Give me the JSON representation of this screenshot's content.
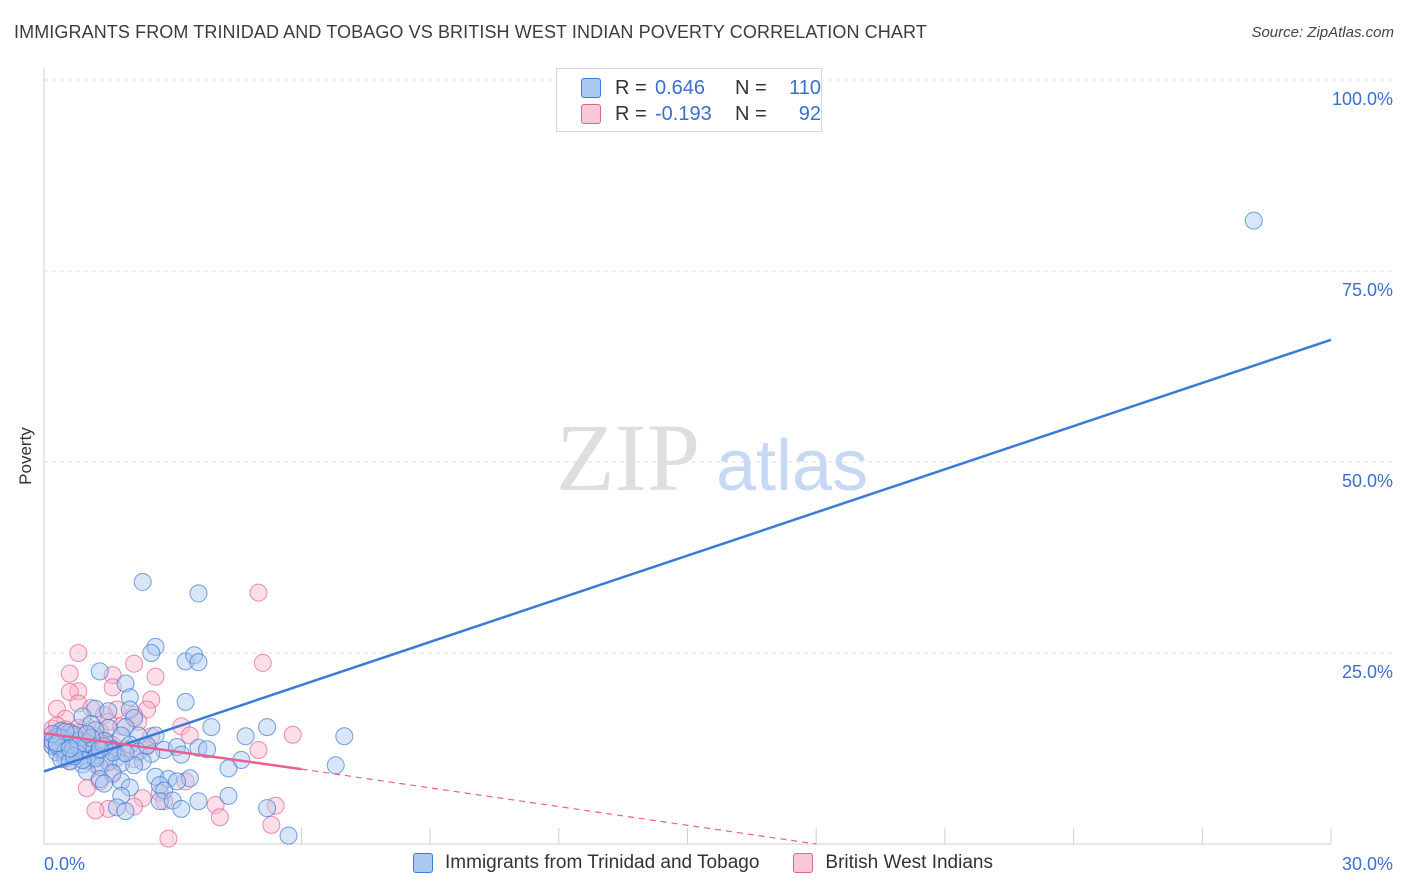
{
  "title": "IMMIGRANTS FROM TRINIDAD AND TOBAGO VS BRITISH WEST INDIAN POVERTY CORRELATION CHART",
  "source": "Source: ZipAtlas.com",
  "watermark": {
    "zip": "ZIP",
    "atlas": "atlas"
  },
  "stats": {
    "row1": {
      "r_label": "R =",
      "r_value": "0.646",
      "n_label": "N =",
      "n_value": "110"
    },
    "row2": {
      "r_label": "R =",
      "r_value": "-0.193",
      "n_label": "N =",
      "n_value": "92"
    }
  },
  "colors": {
    "blue": "#3a7bd5",
    "blue_fill": "#aac8f0",
    "pink": "#e8608f",
    "pink_fill": "#f7b6cb",
    "grid": "#dcdcdc",
    "tick_text": "#3a6fd0"
  },
  "chart_data": {
    "type": "scatter",
    "title": "IMMIGRANTS FROM TRINIDAD AND TOBAGO VS BRITISH WEST INDIAN POVERTY CORRELATION CHART",
    "xlabel": "",
    "ylabel": "Poverty",
    "xlim": [
      0,
      30
    ],
    "ylim": [
      0,
      100
    ],
    "x_tick_labels": [
      "0.0%",
      "30.0%"
    ],
    "y_ticks": [
      25,
      50,
      75,
      100
    ],
    "y_tick_labels": [
      "25.0%",
      "50.0%",
      "75.0%",
      "100.0%"
    ],
    "legend_position": "bottom-center",
    "series": [
      {
        "name": "Immigrants from Trinidad and Tobago",
        "color": "#3a7bd5",
        "trend": {
          "x": [
            0,
            30
          ],
          "y": [
            9.5,
            66.0
          ],
          "style": "solid"
        },
        "points": [
          [
            28.2,
            81.6
          ],
          [
            2.3,
            34.3
          ],
          [
            3.6,
            32.8
          ],
          [
            2.6,
            25.8
          ],
          [
            2.5,
            25.0
          ],
          [
            3.3,
            23.9
          ],
          [
            3.5,
            24.7
          ],
          [
            3.6,
            23.8
          ],
          [
            1.3,
            22.6
          ],
          [
            1.9,
            21.0
          ],
          [
            2.0,
            19.2
          ],
          [
            3.3,
            18.6
          ],
          [
            1.2,
            17.7
          ],
          [
            1.5,
            17.4
          ],
          [
            2.0,
            17.6
          ],
          [
            0.9,
            16.7
          ],
          [
            2.1,
            16.5
          ],
          [
            1.5,
            15.2
          ],
          [
            1.9,
            15.3
          ],
          [
            1.1,
            15.7
          ],
          [
            3.9,
            15.3
          ],
          [
            5.2,
            15.3
          ],
          [
            0.4,
            14.8
          ],
          [
            0.6,
            14.6
          ],
          [
            1.2,
            14.9
          ],
          [
            1.8,
            14.2
          ],
          [
            2.2,
            14.2
          ],
          [
            2.6,
            14.2
          ],
          [
            4.7,
            14.1
          ],
          [
            7.0,
            14.1
          ],
          [
            0.3,
            14.0
          ],
          [
            0.5,
            13.7
          ],
          [
            0.8,
            13.5
          ],
          [
            1.0,
            13.2
          ],
          [
            1.4,
            13.5
          ],
          [
            2.0,
            13.0
          ],
          [
            0.2,
            12.8
          ],
          [
            0.4,
            12.6
          ],
          [
            0.7,
            12.4
          ],
          [
            0.9,
            12.7
          ],
          [
            1.1,
            12.2
          ],
          [
            1.6,
            12.4
          ],
          [
            2.2,
            12.1
          ],
          [
            2.8,
            12.3
          ],
          [
            3.1,
            12.7
          ],
          [
            3.6,
            12.6
          ],
          [
            3.8,
            12.4
          ],
          [
            0.3,
            12.0
          ],
          [
            0.6,
            11.7
          ],
          [
            0.8,
            11.8
          ],
          [
            1.2,
            11.5
          ],
          [
            1.7,
            11.3
          ],
          [
            2.5,
            11.8
          ],
          [
            3.2,
            11.7
          ],
          [
            0.5,
            11.2
          ],
          [
            1.0,
            10.9
          ],
          [
            1.5,
            10.7
          ],
          [
            2.3,
            10.8
          ],
          [
            4.6,
            11.0
          ],
          [
            0.9,
            10.4
          ],
          [
            1.3,
            10.1
          ],
          [
            1.8,
            10.6
          ],
          [
            4.3,
            9.9
          ],
          [
            6.8,
            10.3
          ],
          [
            1.0,
            9.5
          ],
          [
            1.6,
            9.3
          ],
          [
            2.6,
            8.8
          ],
          [
            2.9,
            8.5
          ],
          [
            3.4,
            8.6
          ],
          [
            1.3,
            8.5
          ],
          [
            1.8,
            8.2
          ],
          [
            2.7,
            7.7
          ],
          [
            3.1,
            8.2
          ],
          [
            1.4,
            7.9
          ],
          [
            2.0,
            7.4
          ],
          [
            2.8,
            7.0
          ],
          [
            1.8,
            6.3
          ],
          [
            2.7,
            5.6
          ],
          [
            3.0,
            5.7
          ],
          [
            3.6,
            5.6
          ],
          [
            4.3,
            6.3
          ],
          [
            1.7,
            4.8
          ],
          [
            1.9,
            4.3
          ],
          [
            3.2,
            4.6
          ],
          [
            5.2,
            4.7
          ],
          [
            5.7,
            1.1
          ],
          [
            0.2,
            13.4
          ],
          [
            0.4,
            13.9
          ],
          [
            0.6,
            13.1
          ],
          [
            0.3,
            12.9
          ],
          [
            0.7,
            14.3
          ],
          [
            1.1,
            13.9
          ],
          [
            0.5,
            12.2
          ],
          [
            0.8,
            12.9
          ],
          [
            1.4,
            12.8
          ],
          [
            0.4,
            11.1
          ],
          [
            0.6,
            10.8
          ],
          [
            1.2,
            11.2
          ],
          [
            2.1,
            10.3
          ],
          [
            1.6,
            12.0
          ],
          [
            1.9,
            11.9
          ],
          [
            2.4,
            12.9
          ],
          [
            0.9,
            11.0
          ],
          [
            0.2,
            14.4
          ],
          [
            0.5,
            14.7
          ],
          [
            1.0,
            14.4
          ],
          [
            1.3,
            12.4
          ],
          [
            0.7,
            11.5
          ],
          [
            0.3,
            13.2
          ],
          [
            0.6,
            12.5
          ]
        ]
      },
      {
        "name": "British West Indians",
        "color": "#e8608f",
        "trend": {
          "x": [
            0,
            6.0
          ],
          "y": [
            14.5,
            9.8
          ],
          "style": "solid",
          "dashed_to": [
            18.0,
            0.0
          ]
        },
        "points": [
          [
            5.0,
            32.9
          ],
          [
            0.8,
            25.0
          ],
          [
            2.1,
            23.6
          ],
          [
            5.1,
            23.7
          ],
          [
            1.6,
            22.1
          ],
          [
            2.6,
            21.9
          ],
          [
            0.6,
            22.3
          ],
          [
            0.8,
            20.0
          ],
          [
            1.6,
            20.5
          ],
          [
            0.6,
            19.9
          ],
          [
            2.5,
            18.9
          ],
          [
            0.8,
            18.4
          ],
          [
            1.1,
            17.8
          ],
          [
            1.7,
            17.6
          ],
          [
            2.4,
            17.6
          ],
          [
            0.3,
            17.7
          ],
          [
            1.4,
            16.9
          ],
          [
            2.1,
            16.9
          ],
          [
            0.5,
            16.4
          ],
          [
            1.5,
            16.0
          ],
          [
            2.2,
            16.0
          ],
          [
            3.2,
            15.4
          ],
          [
            0.2,
            15.1
          ],
          [
            1.0,
            15.4
          ],
          [
            1.8,
            15.4
          ],
          [
            0.4,
            14.8
          ],
          [
            0.8,
            14.6
          ],
          [
            1.3,
            14.7
          ],
          [
            2.5,
            14.1
          ],
          [
            5.8,
            14.3
          ],
          [
            0.3,
            14.2
          ],
          [
            0.6,
            14.0
          ],
          [
            1.1,
            13.9
          ],
          [
            3.4,
            14.2
          ],
          [
            0.2,
            13.7
          ],
          [
            0.5,
            13.4
          ],
          [
            0.9,
            13.6
          ],
          [
            1.5,
            13.3
          ],
          [
            0.3,
            13.0
          ],
          [
            0.7,
            12.8
          ],
          [
            1.2,
            12.7
          ],
          [
            2.4,
            12.8
          ],
          [
            5.0,
            12.3
          ],
          [
            0.4,
            12.4
          ],
          [
            1.0,
            12.2
          ],
          [
            1.7,
            12.1
          ],
          [
            0.8,
            11.6
          ],
          [
            1.4,
            11.3
          ],
          [
            2.1,
            11.1
          ],
          [
            0.6,
            10.9
          ],
          [
            1.2,
            10.4
          ],
          [
            3.3,
            8.2
          ],
          [
            1.6,
            9.1
          ],
          [
            1.3,
            8.2
          ],
          [
            1.0,
            7.3
          ],
          [
            2.7,
            6.7
          ],
          [
            2.3,
            6.0
          ],
          [
            2.8,
            5.6
          ],
          [
            4.0,
            5.1
          ],
          [
            5.4,
            5.0
          ],
          [
            1.5,
            4.6
          ],
          [
            2.1,
            4.9
          ],
          [
            4.1,
            3.5
          ],
          [
            1.2,
            4.4
          ],
          [
            5.3,
            2.5
          ],
          [
            2.9,
            0.7
          ],
          [
            0.4,
            13.8
          ],
          [
            0.6,
            14.3
          ],
          [
            0.3,
            13.6
          ],
          [
            0.5,
            13.2
          ],
          [
            0.7,
            13.9
          ],
          [
            0.9,
            14.2
          ],
          [
            0.2,
            13.5
          ],
          [
            0.4,
            13.0
          ],
          [
            0.6,
            12.6
          ],
          [
            0.8,
            13.2
          ],
          [
            1.1,
            12.9
          ],
          [
            0.3,
            14.5
          ],
          [
            0.5,
            14.6
          ],
          [
            0.7,
            12.3
          ],
          [
            1.0,
            13.3
          ],
          [
            1.3,
            13.7
          ],
          [
            0.4,
            12.2
          ],
          [
            0.6,
            11.8
          ],
          [
            0.9,
            12.0
          ],
          [
            1.2,
            14.1
          ],
          [
            0.2,
            12.9
          ],
          [
            0.5,
            15.0
          ],
          [
            0.8,
            15.2
          ],
          [
            1.6,
            13.0
          ],
          [
            1.9,
            12.5
          ],
          [
            0.3,
            15.5
          ]
        ]
      }
    ]
  }
}
